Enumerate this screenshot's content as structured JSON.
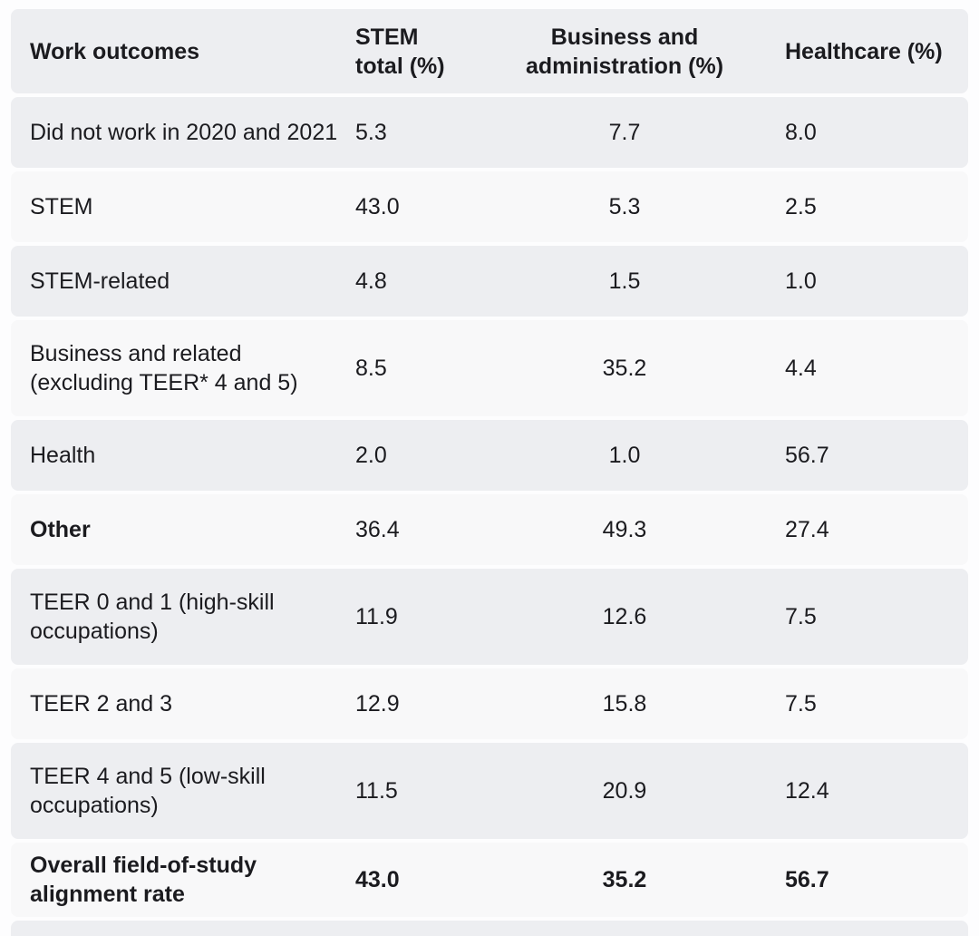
{
  "chart_data": {
    "type": "table",
    "title": "",
    "columns": [
      "Work outcomes",
      "STEM total (%)",
      "Business and administration (%)",
      "Healthcare (%)"
    ],
    "rows": [
      [
        "Did not work in 2020 and 2021",
        "5.3",
        "7.7",
        "8.0"
      ],
      [
        "STEM",
        "43.0",
        "5.3",
        "2.5"
      ],
      [
        "STEM-related",
        "4.8",
        "1.5",
        "1.0"
      ],
      [
        "Business and related (excluding TEER* 4 and 5)",
        "8.5",
        "35.2",
        "4.4"
      ],
      [
        "Health",
        "2.0",
        "1.0",
        "56.7"
      ],
      [
        "Other",
        "36.4",
        "49.3",
        "27.4"
      ],
      [
        "TEER 0 and 1 (high-skill occupations)",
        "11.9",
        "12.6",
        "7.5"
      ],
      [
        "TEER 2 and 3",
        "12.9",
        "15.8",
        "7.5"
      ],
      [
        "TEER 4 and 5 (low-skill occupations)",
        "11.5",
        "20.9",
        "12.4"
      ],
      [
        "Overall field-of-study alignment rate",
        "43.0",
        "35.2",
        "56.7"
      ]
    ],
    "bold_rows": [
      "Other",
      "Overall field-of-study alignment rate"
    ],
    "layout_hints": {
      "zebra_striping": true,
      "column_alignments": [
        "left",
        "left",
        "center",
        "left"
      ]
    }
  },
  "header": {
    "work_outcomes": "Work outcomes",
    "stem_total": "STEM\ntotal (%)",
    "business_admin": "Business and\nadministration (%)",
    "healthcare": "Healthcare (%)"
  },
  "colors": {
    "row_gray": "#edeef1",
    "row_light": "#f8f8f9",
    "page_background": "#fdfdfe",
    "text": "#1b1b1f"
  }
}
